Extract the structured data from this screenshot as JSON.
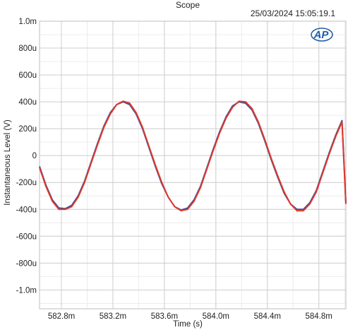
{
  "window": {
    "title": "Scope",
    "timestamp": "25/03/2024 15:05:19.1",
    "logo_text": "AP"
  },
  "colors": {
    "grid": "#cfcfcf",
    "frame": "#bdbdbd",
    "series_1": "#3a4f9a",
    "series_2": "#e2372a",
    "logo": "#1f5fa8"
  },
  "chart_data": {
    "type": "line",
    "title": "Scope",
    "xlabel": "Time (s)",
    "ylabel": "Instantaneous Level (V)",
    "xlim": [
      0.58263,
      0.58501
    ],
    "ylim": [
      -0.00114,
      0.001
    ],
    "grid": true,
    "x_ticks": [
      {
        "value": 0.5828,
        "label": "582.8m"
      },
      {
        "value": 0.5832,
        "label": "583.2m"
      },
      {
        "value": 0.5836,
        "label": "583.6m"
      },
      {
        "value": 0.584,
        "label": "584.0m"
      },
      {
        "value": 0.5844,
        "label": "584.4m"
      },
      {
        "value": 0.5848,
        "label": "584.8m"
      }
    ],
    "y_ticks": [
      {
        "value": 0.001,
        "label": "1.0m"
      },
      {
        "value": 0.0008,
        "label": "800u"
      },
      {
        "value": 0.0006,
        "label": "600u"
      },
      {
        "value": 0.0004,
        "label": "400u"
      },
      {
        "value": 0.0002,
        "label": "200u"
      },
      {
        "value": 0.0,
        "label": "0"
      },
      {
        "value": -0.0002,
        "label": "-200u"
      },
      {
        "value": -0.0004,
        "label": "-400u"
      },
      {
        "value": -0.0006,
        "label": "-600u"
      },
      {
        "value": -0.0008,
        "label": "-800u"
      },
      {
        "value": -0.001,
        "label": "-1.0m"
      }
    ],
    "series": [
      {
        "color": "#3a4f9a",
        "x": [
          0.58263,
          0.58268,
          0.58273,
          0.58278,
          0.58283,
          0.58288,
          0.58293,
          0.58298,
          0.58303,
          0.58308,
          0.58313,
          0.58318,
          0.58323,
          0.58328,
          0.58333,
          0.58338,
          0.58343,
          0.58348,
          0.58353,
          0.58358,
          0.58363,
          0.58368,
          0.58373,
          0.58378,
          0.58383,
          0.58388,
          0.58393,
          0.58398,
          0.58403,
          0.58408,
          0.58413,
          0.58418,
          0.58423,
          0.58428,
          0.58433,
          0.58438,
          0.58443,
          0.58448,
          0.58453,
          0.58458,
          0.58463,
          0.58468,
          0.58473,
          0.58478,
          0.58483,
          0.58488,
          0.58493,
          0.58498,
          0.58501
        ],
        "y": [
          -8e-05,
          -0.00022,
          -0.00033,
          -0.00039,
          -0.000395,
          -0.00037,
          -0.0003,
          -0.00019,
          -5e-05,
          9e-05,
          0.00022,
          0.00032,
          0.00038,
          0.0004,
          0.00038,
          0.00031,
          0.0002,
          6e-05,
          -8e-05,
          -0.00021,
          -0.00031,
          -0.00038,
          -0.000405,
          -0.00039,
          -0.00033,
          -0.00023,
          -9e-05,
          5e-05,
          0.00018,
          0.00029,
          0.00037,
          0.0004,
          0.00039,
          0.00034,
          0.00024,
          0.00011,
          -3e-05,
          -0.00016,
          -0.00028,
          -0.00036,
          -0.0004,
          -0.0004,
          -0.00035,
          -0.00026,
          -0.00012,
          2e-05,
          0.00015,
          0.00026,
          -0.00035
        ]
      },
      {
        "color": "#e2372a",
        "x": [
          0.58263,
          0.58268,
          0.58273,
          0.58278,
          0.58283,
          0.58288,
          0.58293,
          0.58298,
          0.58303,
          0.58308,
          0.58313,
          0.58318,
          0.58323,
          0.58328,
          0.58333,
          0.58338,
          0.58343,
          0.58348,
          0.58353,
          0.58358,
          0.58363,
          0.58368,
          0.58373,
          0.58378,
          0.58383,
          0.58388,
          0.58393,
          0.58398,
          0.58403,
          0.58408,
          0.58413,
          0.58418,
          0.58423,
          0.58428,
          0.58433,
          0.58438,
          0.58443,
          0.58448,
          0.58453,
          0.58458,
          0.58463,
          0.58468,
          0.58473,
          0.58478,
          0.58483,
          0.58488,
          0.58493,
          0.58498,
          0.58501
        ],
        "y": [
          -9e-05,
          -0.00023,
          -0.00034,
          -0.0004,
          -0.0004,
          -0.00038,
          -0.00031,
          -0.0002,
          -6e-05,
          8e-05,
          0.00021,
          0.00031,
          0.00038,
          0.000405,
          0.00039,
          0.00032,
          0.00021,
          7e-05,
          -7e-05,
          -0.0002,
          -0.00031,
          -0.00038,
          -0.00041,
          -0.0004,
          -0.00034,
          -0.00024,
          -0.0001,
          4e-05,
          0.00017,
          0.00028,
          0.00036,
          0.000405,
          0.0004,
          0.00035,
          0.00025,
          0.00012,
          -2e-05,
          -0.00015,
          -0.00027,
          -0.00036,
          -0.00041,
          -0.00041,
          -0.00036,
          -0.00027,
          -0.00013,
          1e-05,
          0.00014,
          0.00025,
          -0.00036
        ]
      }
    ]
  }
}
